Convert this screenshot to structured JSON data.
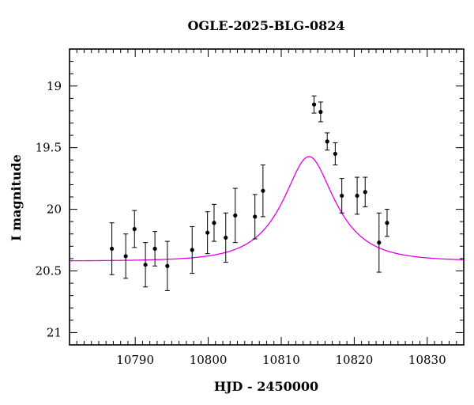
{
  "chart_data": {
    "type": "scatter",
    "title": "OGLE-2025-BLG-0824",
    "xlabel": "HJD - 2450000",
    "ylabel": "I magnitude",
    "xlim": [
      10781,
      10835
    ],
    "ylim": [
      21.1,
      18.7
    ],
    "y_inverted": true,
    "grid": false,
    "legend": "none",
    "x_ticks": [
      "10790",
      "10800",
      "10810",
      "10820",
      "10830"
    ],
    "y_ticks": [
      "19",
      "19.5",
      "20",
      "20.5",
      "21"
    ],
    "series": [
      {
        "kind": "points_with_errorbars",
        "color": "#000000",
        "points": [
          {
            "x": 10786.8,
            "y": 20.32,
            "err": 0.21
          },
          {
            "x": 10788.7,
            "y": 20.38,
            "err": 0.18
          },
          {
            "x": 10789.9,
            "y": 20.16,
            "err": 0.15
          },
          {
            "x": 10791.4,
            "y": 20.45,
            "err": 0.18
          },
          {
            "x": 10792.7,
            "y": 20.32,
            "err": 0.14
          },
          {
            "x": 10794.4,
            "y": 20.46,
            "err": 0.2
          },
          {
            "x": 10797.8,
            "y": 20.33,
            "err": 0.19
          },
          {
            "x": 10799.9,
            "y": 20.19,
            "err": 0.17
          },
          {
            "x": 10800.8,
            "y": 20.11,
            "err": 0.15
          },
          {
            "x": 10802.4,
            "y": 20.23,
            "err": 0.2
          },
          {
            "x": 10803.7,
            "y": 20.05,
            "err": 0.22
          },
          {
            "x": 10806.4,
            "y": 20.06,
            "err": 0.18
          },
          {
            "x": 10807.5,
            "y": 19.85,
            "err": 0.21
          },
          {
            "x": 10814.5,
            "y": 19.15,
            "err": 0.07
          },
          {
            "x": 10815.4,
            "y": 19.21,
            "err": 0.08
          },
          {
            "x": 10816.3,
            "y": 19.45,
            "err": 0.07
          },
          {
            "x": 10817.4,
            "y": 19.55,
            "err": 0.09
          },
          {
            "x": 10818.3,
            "y": 19.89,
            "err": 0.14
          },
          {
            "x": 10820.4,
            "y": 19.89,
            "err": 0.15
          },
          {
            "x": 10821.5,
            "y": 19.86,
            "err": 0.12
          },
          {
            "x": 10823.4,
            "y": 20.27,
            "err": 0.24
          },
          {
            "x": 10824.5,
            "y": 20.11,
            "err": 0.11
          }
        ]
      },
      {
        "kind": "model_curve",
        "color": "#e000e0",
        "model": "point-lens Paczynski",
        "params": {
          "t0": 10813.8,
          "u0": 0.5,
          "tE": 6.1,
          "baseline_mag": 20.42,
          "blend_fraction": 1.0
        }
      }
    ]
  }
}
